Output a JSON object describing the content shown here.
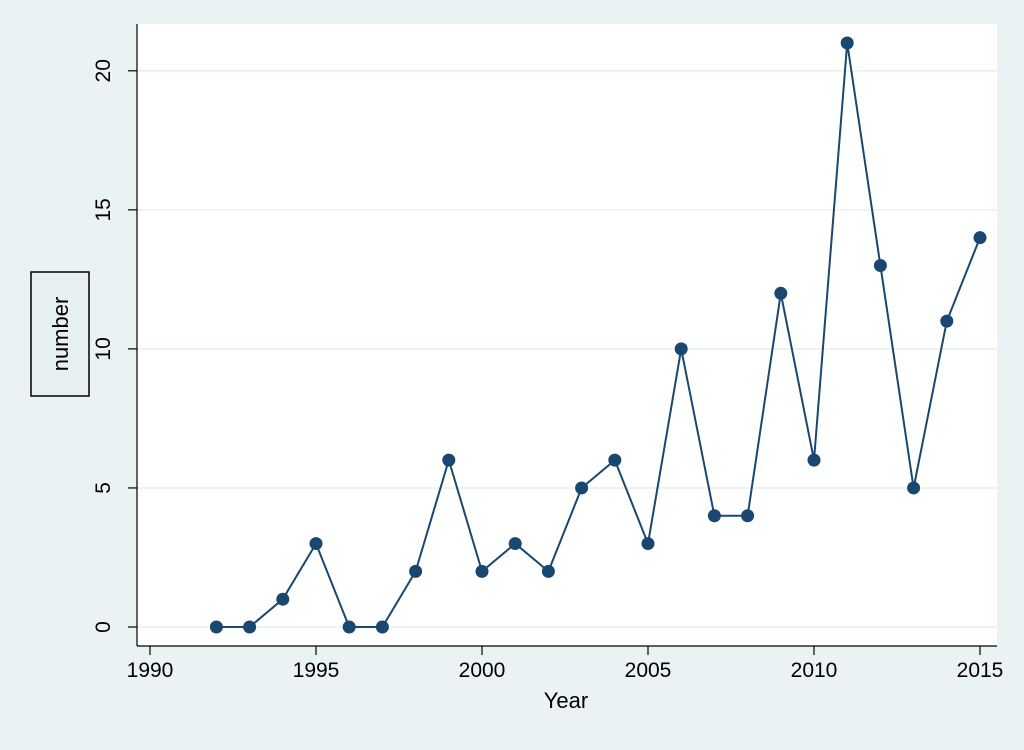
{
  "chart_data": {
    "type": "line",
    "title": "",
    "xlabel": "Year",
    "ylabel": "number",
    "xlim": [
      1990,
      2015
    ],
    "ylim": [
      0,
      21
    ],
    "x_ticks": [
      1990,
      1995,
      2000,
      2005,
      2010,
      2015
    ],
    "y_ticks": [
      0,
      5,
      10,
      15,
      20
    ],
    "grid": true,
    "legend": "none",
    "series": [
      {
        "x": [
          1992,
          1993,
          1994,
          1995,
          1996,
          1997,
          1998,
          1999,
          2000,
          2001,
          2002,
          2003,
          2004,
          2005,
          2006,
          2007,
          2008,
          2009,
          2010,
          2011,
          2012,
          2013,
          2014,
          2015
        ],
        "values": [
          0,
          0,
          1,
          3,
          0,
          0,
          2,
          6,
          2,
          3,
          2,
          5,
          6,
          3,
          10,
          4,
          4,
          12,
          6,
          21,
          13,
          5,
          11,
          14
        ]
      }
    ],
    "colors": {
      "background": "#eaf2f3",
      "plot_area": "#ffffff",
      "grid": "#e6f0f1",
      "series": "#1a476f",
      "axis": "#000000"
    }
  }
}
